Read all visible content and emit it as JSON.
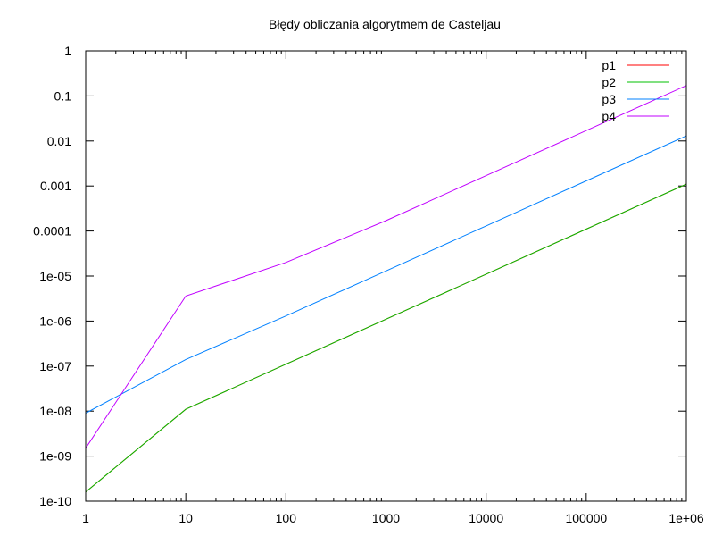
{
  "chart_data": {
    "type": "line",
    "title": "Błędy obliczania algorytmem de Casteljau",
    "xlabel": "",
    "ylabel": "",
    "xscale": "log",
    "yscale": "log",
    "xlim": [
      1,
      1000000
    ],
    "ylim": [
      1e-10,
      1
    ],
    "grid": false,
    "legend_position": "top-right",
    "x_ticks": [
      1,
      10,
      100,
      1000,
      10000,
      100000,
      1000000
    ],
    "x_tick_labels": [
      "1",
      "10",
      "100",
      "1000",
      "10000",
      "100000",
      "1e+06"
    ],
    "y_ticks": [
      1e-10,
      1e-09,
      1e-08,
      1e-07,
      1e-06,
      1e-05,
      0.0001,
      0.001,
      0.01,
      0.1,
      1
    ],
    "y_tick_labels": [
      "1e-10",
      "1e-09",
      "1e-08",
      "1e-07",
      "1e-06",
      "1e-05",
      "0.0001",
      "0.001",
      "0.01",
      "0.1",
      "1"
    ],
    "series": [
      {
        "name": "p1",
        "color": "#ff0000",
        "x": [
          1,
          10,
          100,
          1000,
          10000,
          100000,
          1000000
        ],
        "y": [
          1.6e-10,
          1.1e-08,
          1.1e-07,
          1.1e-06,
          1.1e-05,
          0.00011,
          0.0011
        ]
      },
      {
        "name": "p2",
        "color": "#00c000",
        "x": [
          1,
          10,
          100,
          1000,
          10000,
          100000,
          1000000
        ],
        "y": [
          1.6e-10,
          1.1e-08,
          1.1e-07,
          1.1e-06,
          1.1e-05,
          0.00011,
          0.0011
        ]
      },
      {
        "name": "p3",
        "color": "#0080ff",
        "x": [
          1,
          10,
          100,
          1000,
          10000,
          100000,
          1000000
        ],
        "y": [
          9e-09,
          1.4e-07,
          1.3e-06,
          1.3e-05,
          0.00013,
          0.0013,
          0.013
        ]
      },
      {
        "name": "p4",
        "color": "#c000ff",
        "x": [
          1,
          10,
          100,
          1000,
          10000,
          100000,
          1000000
        ],
        "y": [
          1.5e-09,
          3.6e-06,
          2e-05,
          0.00017,
          0.0017,
          0.017,
          0.17
        ]
      }
    ]
  }
}
